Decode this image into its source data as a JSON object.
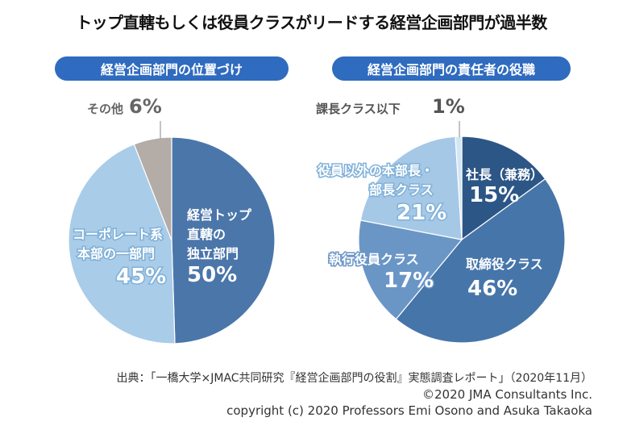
{
  "title": "トップ直轄もしくは役員クラスがリードする経営企画部門が過半数",
  "chart_data": [
    {
      "type": "pie",
      "title": "経営企画部門の位置づけ",
      "unit": "%",
      "slices": [
        {
          "label": "経営トップ直轄の独立部門",
          "label_lines": [
            "経営トップ",
            "直轄の",
            "独立部門"
          ],
          "value": 50,
          "value_label": "50%",
          "color": "#4b76aa"
        },
        {
          "label": "コーポレート系本部の一部門",
          "label_lines": [
            "コーポレート系",
            "本部の一部門"
          ],
          "value": 45,
          "value_label": "45%",
          "color": "#a9cce8"
        },
        {
          "label": "その他",
          "label_lines": [
            "その他"
          ],
          "value": 6,
          "value_label": "6%",
          "color": "#b3aca7"
        }
      ]
    },
    {
      "type": "pie",
      "title": "経営企画部門の責任者の役職",
      "unit": "%",
      "slices": [
        {
          "label": "社長（兼務）",
          "label_lines": [
            "社長（兼務）"
          ],
          "value": 15,
          "value_label": "15%",
          "color": "#2c5686"
        },
        {
          "label": "取締役クラス",
          "label_lines": [
            "取締役クラス"
          ],
          "value": 46,
          "value_label": "46%",
          "color": "#4675a9"
        },
        {
          "label": "執行役員クラス",
          "label_lines": [
            "執行役員クラス"
          ],
          "value": 17,
          "value_label": "17%",
          "color": "#6a96c6"
        },
        {
          "label": "役員以外の本部長・部長クラス",
          "label_lines": [
            "役員以外の本部長・",
            "部長クラス"
          ],
          "value": 21,
          "value_label": "21%",
          "color": "#a5c8e6"
        },
        {
          "label": "課長クラス以下",
          "label_lines": [
            "課長クラス以下"
          ],
          "value": 1,
          "value_label": "1%",
          "color": "#d3e6f4"
        }
      ]
    }
  ],
  "source": "出典：「一橋大学×JMAC共同研究『経営企画部門の役割』実態調査レポート」（2020年11月）",
  "copyright1": "©2020 JMA Consultants Inc.",
  "copyright2": "copyright (c) 2020 Professors Emi Osono and Asuka Takaoka"
}
